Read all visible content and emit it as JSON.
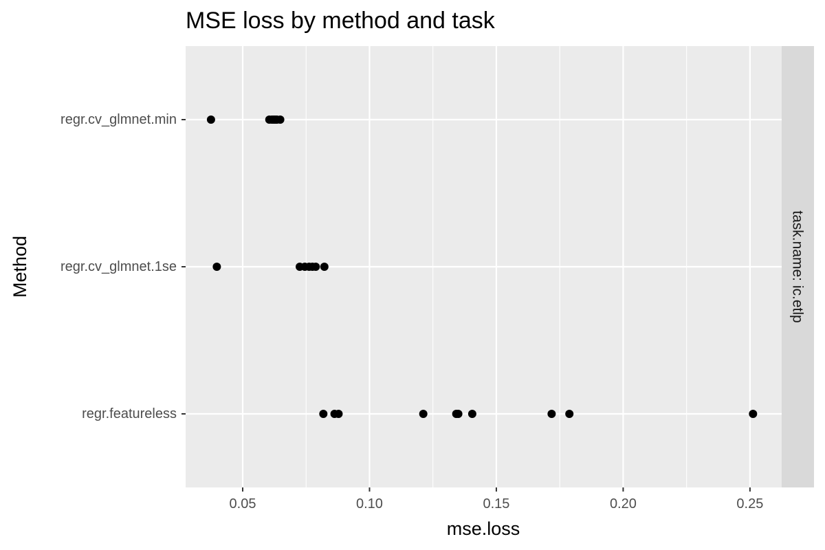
{
  "chart_data": {
    "type": "scatter",
    "title": "MSE loss by method and task",
    "xlabel": "mse.loss",
    "ylabel": "Method",
    "facet_label": "task.name: ic.etlp",
    "xlim": [
      0.0275,
      0.2625
    ],
    "x_ticks": [
      0.05,
      0.1,
      0.15,
      0.2,
      0.25
    ],
    "x_tick_labels": [
      "0.05",
      "0.10",
      "0.15",
      "0.20",
      "0.25"
    ],
    "categories": [
      "regr.cv_glmnet.min",
      "regr.cv_glmnet.1se",
      "regr.featureless"
    ],
    "grid": true,
    "background": "#ebebeb",
    "strip_color": "#d9d9d9",
    "point_color": "#000000",
    "series": [
      {
        "category": "regr.cv_glmnet.min",
        "values": [
          0.0375,
          0.0605,
          0.0615,
          0.0622,
          0.0628,
          0.0635,
          0.0648
        ]
      },
      {
        "category": "regr.cv_glmnet.1se",
        "values": [
          0.0398,
          0.0725,
          0.0745,
          0.0762,
          0.0775,
          0.0788,
          0.0822
        ]
      },
      {
        "category": "regr.featureless",
        "values": [
          0.0818,
          0.0862,
          0.0878,
          0.1212,
          0.1342,
          0.135,
          0.1405,
          0.1718,
          0.1788,
          0.2512
        ]
      }
    ]
  }
}
